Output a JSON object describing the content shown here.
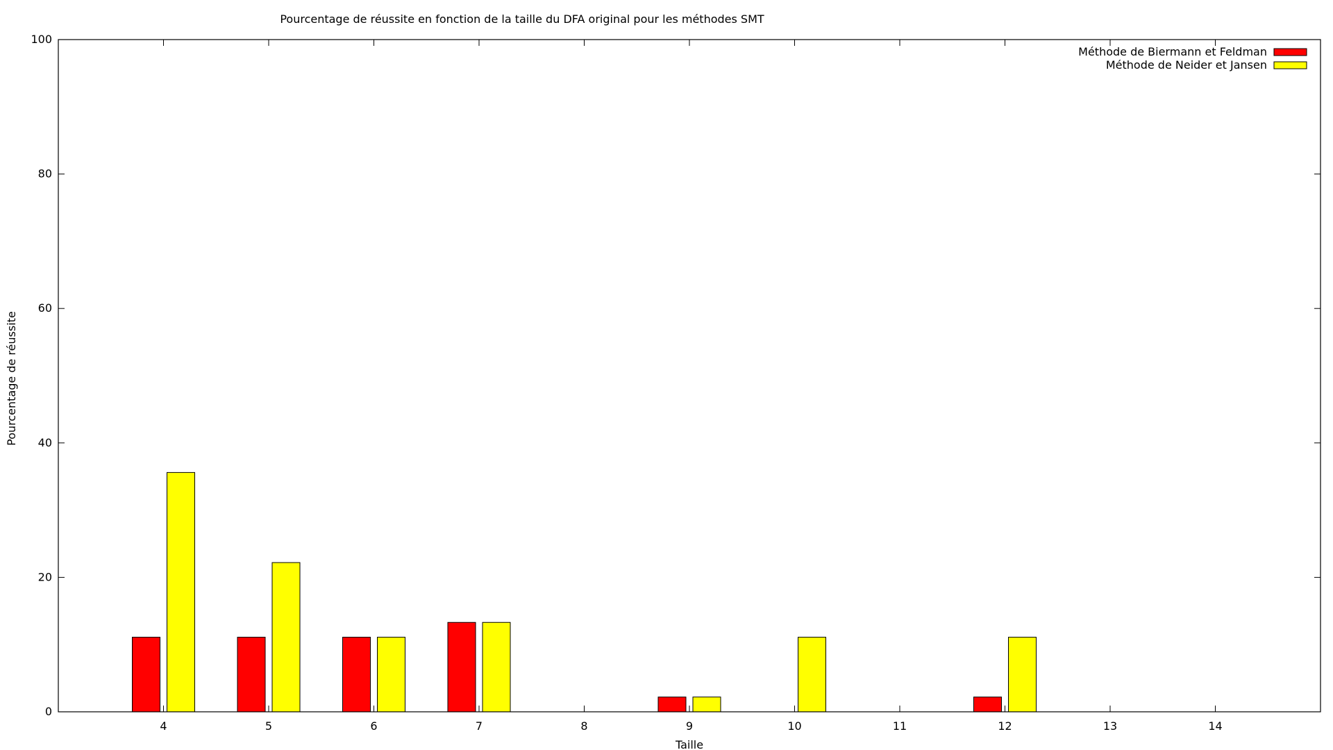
{
  "chart_data": {
    "type": "bar",
    "title": "Pourcentage de réussite en fonction de la taille du DFA original pour les méthodes SMT",
    "xlabel": "Taille",
    "ylabel": "Pourcentage de réussite",
    "ylim": [
      0,
      100
    ],
    "yticks": [
      0,
      20,
      40,
      60,
      80,
      100
    ],
    "xlim": [
      3,
      15
    ],
    "categories": [
      4,
      5,
      6,
      7,
      8,
      9,
      10,
      11,
      12,
      13,
      14
    ],
    "series": [
      {
        "name": "Méthode de Biermann et Feldman",
        "color": "#ff0000",
        "values": [
          11.1,
          11.1,
          11.1,
          13.3,
          0,
          2.2,
          0,
          0,
          2.2,
          0,
          0
        ]
      },
      {
        "name": "Méthode de Neider et Jansen",
        "color": "#ffff00",
        "values": [
          35.6,
          22.2,
          11.1,
          13.3,
          0,
          2.2,
          11.1,
          0,
          11.1,
          0,
          0
        ]
      }
    ],
    "legend_position": "top-right",
    "grid": false
  }
}
